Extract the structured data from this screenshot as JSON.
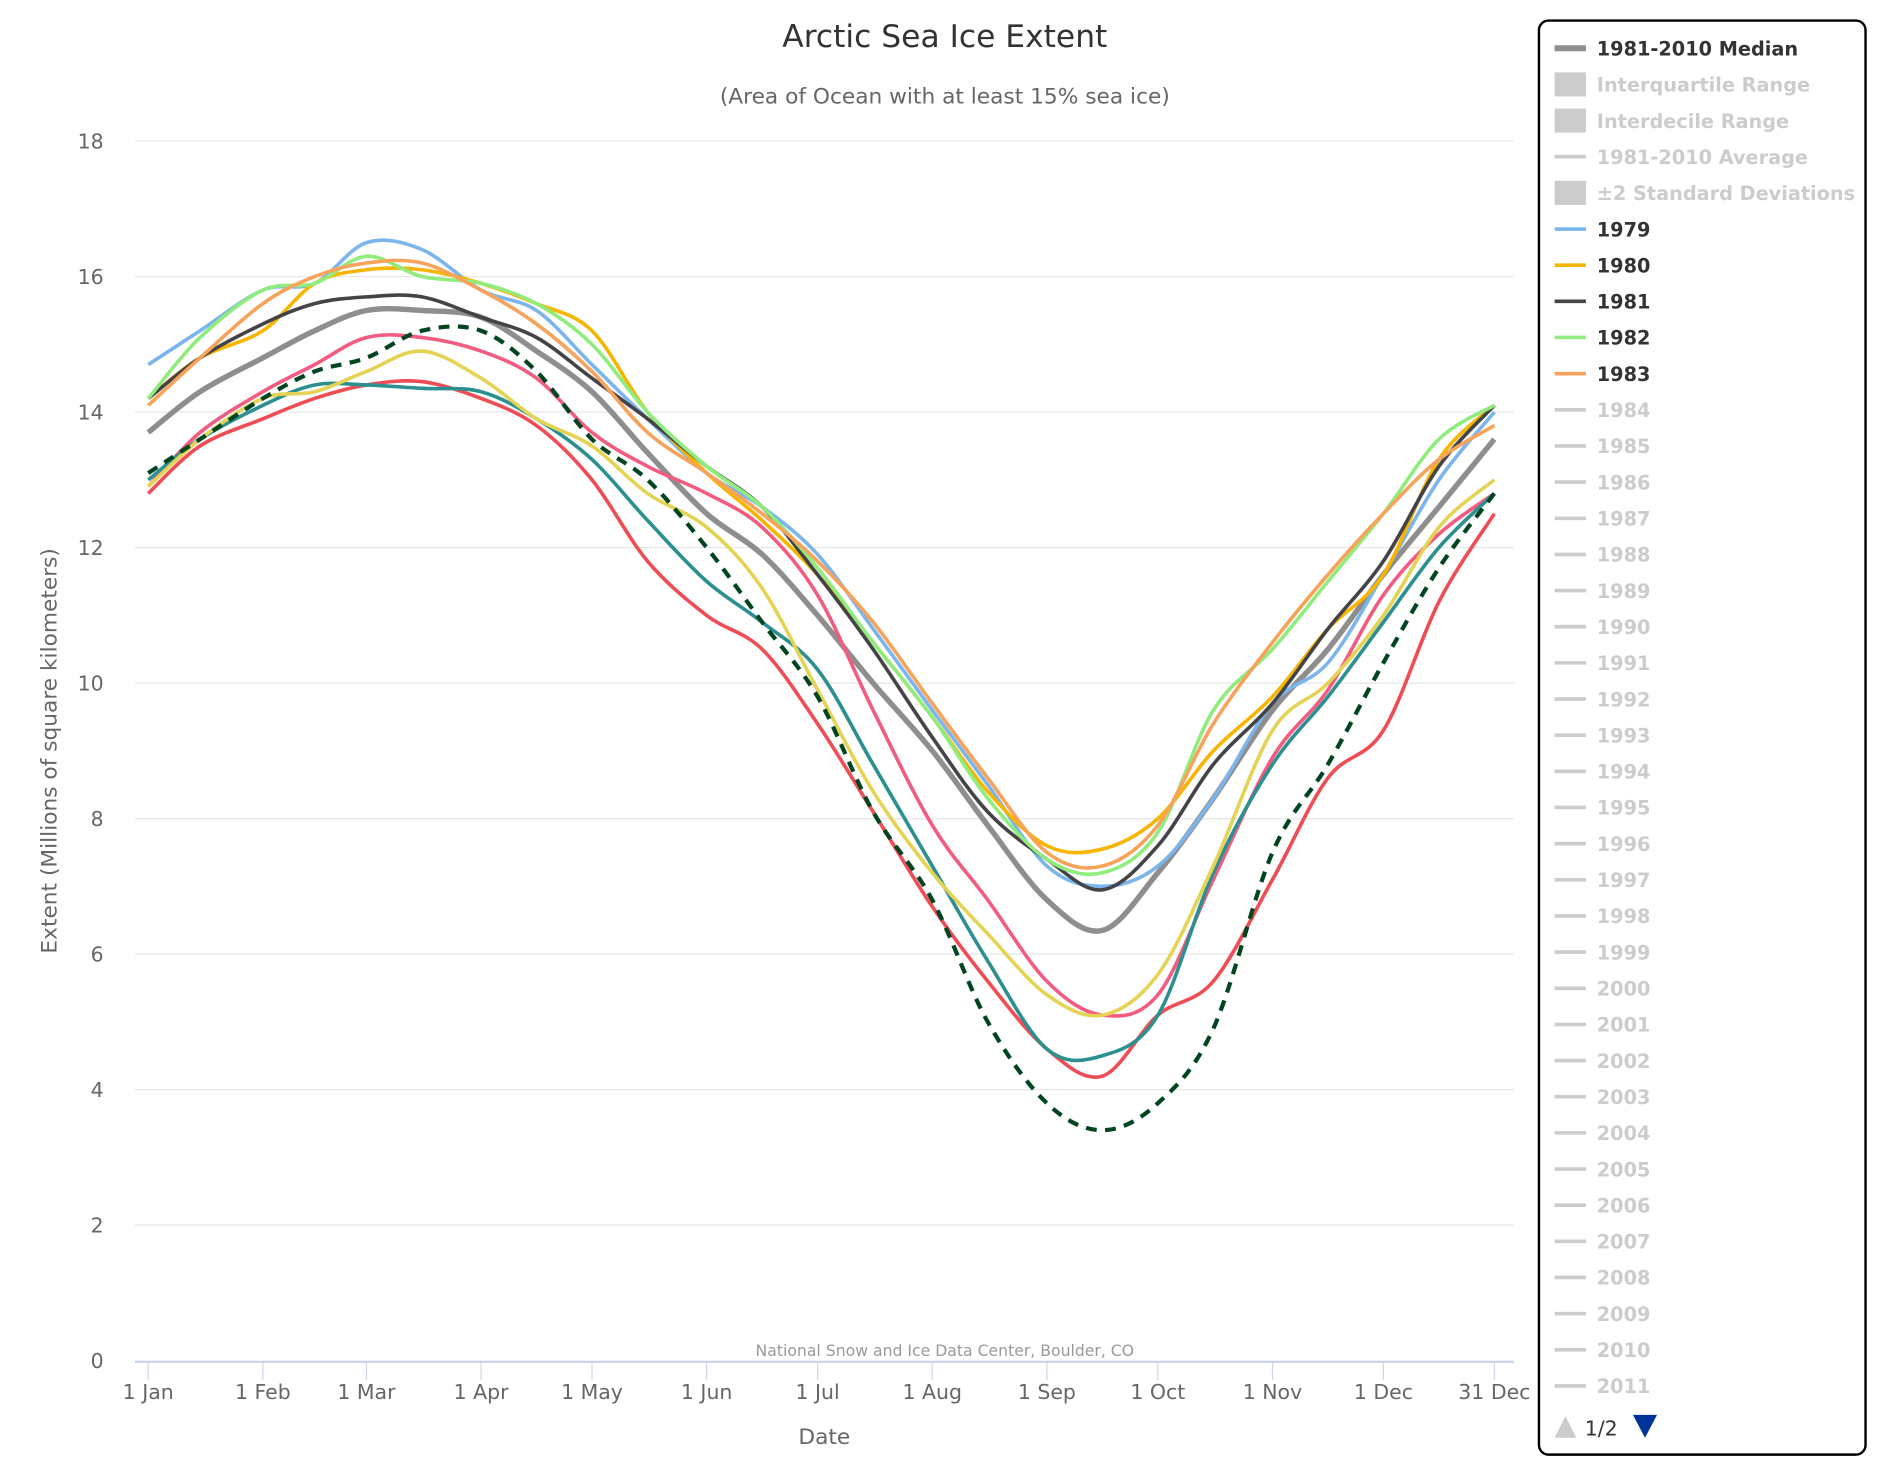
{
  "chart_data": {
    "type": "line",
    "title": "Arctic Sea Ice Extent",
    "subtitle": "(Area of Ocean with at least 15% sea ice)",
    "xlabel": "Date",
    "ylabel": "Extent (Millions of square kilometers)",
    "credit": "National Snow and Ice Data Center, Boulder, CO",
    "ylim": [
      0,
      18
    ],
    "yticks": [
      0,
      2,
      4,
      6,
      8,
      10,
      12,
      14,
      16,
      18
    ],
    "xlim_day_of_year": [
      1,
      365
    ],
    "xticks": [
      {
        "label": "1 Jan",
        "day": 1
      },
      {
        "label": "1 Feb",
        "day": 32
      },
      {
        "label": "1 Mar",
        "day": 60
      },
      {
        "label": "1 Apr",
        "day": 91
      },
      {
        "label": "1 May",
        "day": 121
      },
      {
        "label": "1 Jun",
        "day": 152
      },
      {
        "label": "1 Jul",
        "day": 182
      },
      {
        "label": "1 Aug",
        "day": 213
      },
      {
        "label": "1 Sep",
        "day": 244
      },
      {
        "label": "1 Oct",
        "day": 274
      },
      {
        "label": "1 Nov",
        "day": 305
      },
      {
        "label": "1 Dec",
        "day": 335
      },
      {
        "label": "31 Dec",
        "day": 365
      }
    ],
    "grid": true,
    "legend_placement": "right",
    "x_day_of_year": [
      1,
      15,
      32,
      46,
      60,
      75,
      91,
      106,
      121,
      136,
      152,
      167,
      182,
      197,
      213,
      228,
      244,
      259,
      274,
      289,
      305,
      320,
      335,
      350,
      365
    ],
    "series": [
      {
        "name": "1981-2010 Median",
        "color": "#8e8e8e",
        "width": 4.5,
        "values": [
          13.7,
          14.3,
          14.8,
          15.2,
          15.5,
          15.5,
          15.4,
          14.9,
          14.3,
          13.4,
          12.5,
          11.9,
          11.0,
          10.0,
          9.0,
          7.9,
          6.8,
          6.35,
          7.2,
          8.3,
          9.6,
          10.5,
          11.6,
          12.6,
          13.6
        ]
      },
      {
        "name": "1979",
        "color": "#7cb5ec",
        "width": 3,
        "values": [
          14.7,
          15.2,
          15.8,
          15.9,
          16.5,
          16.4,
          15.8,
          15.5,
          14.7,
          13.9,
          13.1,
          12.6,
          11.9,
          10.8,
          9.6,
          8.5,
          7.3,
          7.0,
          7.3,
          8.3,
          9.7,
          10.3,
          11.6,
          13.0,
          14.0
        ]
      },
      {
        "name": "1980",
        "color": "#f7b500",
        "width": 3,
        "values": [
          14.2,
          14.8,
          15.2,
          15.9,
          16.1,
          16.1,
          15.9,
          15.6,
          15.2,
          14.0,
          13.1,
          12.4,
          11.6,
          10.6,
          9.5,
          8.4,
          7.6,
          7.55,
          8.0,
          9.0,
          9.8,
          10.8,
          11.6,
          13.3,
          14.1
        ]
      },
      {
        "name": "1981",
        "color": "#434348",
        "width": 3,
        "values": [
          14.2,
          14.8,
          15.3,
          15.6,
          15.7,
          15.7,
          15.4,
          15.1,
          14.5,
          13.9,
          13.2,
          12.6,
          11.6,
          10.5,
          9.2,
          8.1,
          7.4,
          6.95,
          7.6,
          8.8,
          9.7,
          10.8,
          11.8,
          13.2,
          14.1
        ]
      },
      {
        "name": "1982",
        "color": "#90ed7d",
        "width": 3,
        "values": [
          14.2,
          15.1,
          15.8,
          15.9,
          16.3,
          16.0,
          15.9,
          15.6,
          15.0,
          14.0,
          13.2,
          12.6,
          11.7,
          10.6,
          9.5,
          8.3,
          7.4,
          7.2,
          7.8,
          9.6,
          10.5,
          11.5,
          12.5,
          13.6,
          14.1
        ]
      },
      {
        "name": "1983",
        "color": "#f7a35c",
        "width": 3,
        "values": [
          14.1,
          14.8,
          15.6,
          16.0,
          16.2,
          16.2,
          15.8,
          15.3,
          14.6,
          13.7,
          13.1,
          12.5,
          11.8,
          10.9,
          9.7,
          8.6,
          7.5,
          7.3,
          7.9,
          9.4,
          10.6,
          11.6,
          12.5,
          13.3,
          13.8
        ]
      },
      {
        "color": "#f15c80",
        "width": 3,
        "values": [
          12.9,
          13.7,
          14.3,
          14.7,
          15.1,
          15.1,
          14.9,
          14.5,
          13.7,
          13.2,
          12.8,
          12.3,
          11.3,
          9.6,
          7.9,
          6.8,
          5.6,
          5.1,
          5.4,
          7.1,
          8.9,
          9.9,
          11.3,
          12.2,
          12.8
        ]
      },
      {
        "color": "#ee4d55",
        "width": 3,
        "values": [
          12.8,
          13.5,
          13.9,
          14.2,
          14.4,
          14.45,
          14.2,
          13.8,
          13.0,
          11.8,
          11.0,
          10.5,
          9.4,
          8.1,
          6.7,
          5.6,
          4.6,
          4.2,
          5.1,
          5.6,
          7.1,
          8.6,
          9.3,
          11.2,
          12.5
        ]
      },
      {
        "color": "#2b908f",
        "width": 3,
        "values": [
          13.0,
          13.6,
          14.1,
          14.4,
          14.4,
          14.35,
          14.3,
          13.9,
          13.3,
          12.4,
          11.5,
          10.9,
          10.2,
          8.8,
          7.3,
          5.9,
          4.6,
          4.5,
          5.1,
          7.2,
          8.8,
          9.8,
          10.9,
          12.0,
          12.8
        ]
      },
      {
        "color": "#e4d354",
        "width": 3,
        "values": [
          12.9,
          13.6,
          14.2,
          14.3,
          14.6,
          14.9,
          14.5,
          13.9,
          13.5,
          12.8,
          12.3,
          11.4,
          9.9,
          8.4,
          7.2,
          6.3,
          5.4,
          5.1,
          5.7,
          7.3,
          9.3,
          10.0,
          11.0,
          12.3,
          13.0
        ]
      },
      {
        "color": "#00451f",
        "width": 3.5,
        "dashed": true,
        "values": [
          13.1,
          13.6,
          14.2,
          14.6,
          14.8,
          15.2,
          15.2,
          14.6,
          13.6,
          13.0,
          12.0,
          10.9,
          9.8,
          8.1,
          6.8,
          5.0,
          3.8,
          3.4,
          3.8,
          4.9,
          7.5,
          8.8,
          10.3,
          11.7,
          12.8
        ]
      }
    ]
  },
  "legend": {
    "items": [
      {
        "label": "1981-2010 Median",
        "symbol": "line",
        "color": "#8e8e8e",
        "active": true
      },
      {
        "label": "Interquartile Range",
        "symbol": "box",
        "active": false
      },
      {
        "label": "Interdecile Range",
        "symbol": "box",
        "active": false
      },
      {
        "label": "1981-2010 Average",
        "symbol": "line",
        "active": false
      },
      {
        "label": "±2 Standard Deviations",
        "symbol": "box",
        "active": false
      },
      {
        "label": "1979",
        "symbol": "line",
        "color": "#7cb5ec",
        "active": true
      },
      {
        "label": "1980",
        "symbol": "line",
        "color": "#f7b500",
        "active": true
      },
      {
        "label": "1981",
        "symbol": "line",
        "color": "#434348",
        "active": true
      },
      {
        "label": "1982",
        "symbol": "line",
        "color": "#90ed7d",
        "active": true
      },
      {
        "label": "1983",
        "symbol": "line",
        "color": "#f7a35c",
        "active": true
      },
      {
        "label": "1984",
        "symbol": "line",
        "active": false
      },
      {
        "label": "1985",
        "symbol": "line",
        "active": false
      },
      {
        "label": "1986",
        "symbol": "line",
        "active": false
      },
      {
        "label": "1987",
        "symbol": "line",
        "active": false
      },
      {
        "label": "1988",
        "symbol": "line",
        "active": false
      },
      {
        "label": "1989",
        "symbol": "line",
        "active": false
      },
      {
        "label": "1990",
        "symbol": "line",
        "active": false
      },
      {
        "label": "1991",
        "symbol": "line",
        "active": false
      },
      {
        "label": "1992",
        "symbol": "line",
        "active": false
      },
      {
        "label": "1993",
        "symbol": "line",
        "active": false
      },
      {
        "label": "1994",
        "symbol": "line",
        "active": false
      },
      {
        "label": "1995",
        "symbol": "line",
        "active": false
      },
      {
        "label": "1996",
        "symbol": "line",
        "active": false
      },
      {
        "label": "1997",
        "symbol": "line",
        "active": false
      },
      {
        "label": "1998",
        "symbol": "line",
        "active": false
      },
      {
        "label": "1999",
        "symbol": "line",
        "active": false
      },
      {
        "label": "2000",
        "symbol": "line",
        "active": false
      },
      {
        "label": "2001",
        "symbol": "line",
        "active": false
      },
      {
        "label": "2002",
        "symbol": "line",
        "active": false
      },
      {
        "label": "2003",
        "symbol": "line",
        "active": false
      },
      {
        "label": "2004",
        "symbol": "line",
        "active": false
      },
      {
        "label": "2005",
        "symbol": "line",
        "active": false
      },
      {
        "label": "2006",
        "symbol": "line",
        "active": false
      },
      {
        "label": "2007",
        "symbol": "line",
        "active": false
      },
      {
        "label": "2008",
        "symbol": "line",
        "active": false
      },
      {
        "label": "2009",
        "symbol": "line",
        "active": false
      },
      {
        "label": "2010",
        "symbol": "line",
        "active": false
      },
      {
        "label": "2011",
        "symbol": "line",
        "active": false
      }
    ],
    "page_indicator": "1/2",
    "nav_up_color": "#cccccc",
    "nav_down_color": "#003399"
  }
}
